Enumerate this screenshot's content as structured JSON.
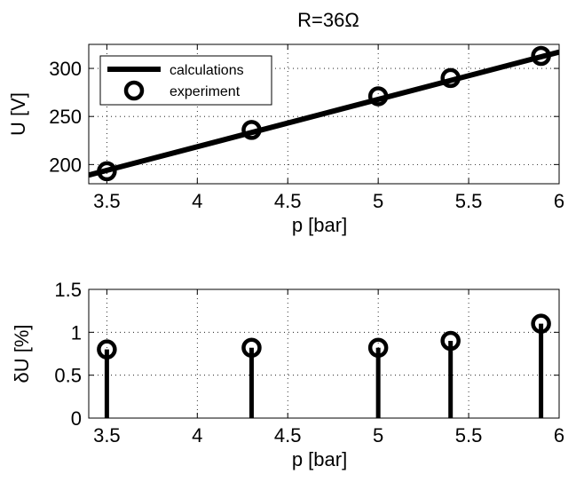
{
  "figure": {
    "title": "R=36Ω"
  },
  "chart_data": [
    {
      "type": "line",
      "title": "R=36Ω",
      "xlabel": "p [bar]",
      "ylabel": "U [V]",
      "xlim": [
        3.4,
        6.0
      ],
      "ylim": [
        180,
        325
      ],
      "xticks": [
        3.5,
        4,
        4.5,
        5,
        5.5,
        6
      ],
      "xtick_labels": [
        "3.5",
        "4",
        "4.5",
        "5",
        "5.5",
        "6"
      ],
      "yticks": [
        200,
        250,
        300
      ],
      "ytick_labels": [
        "200",
        "250",
        "300"
      ],
      "grid": true,
      "legend_position": "top-left",
      "series": [
        {
          "name": "calculations",
          "style": "solid line",
          "color": "#000000",
          "x": [
            3.4,
            6.0
          ],
          "y": [
            189,
            317
          ]
        },
        {
          "name": "experiment",
          "style": "open circle markers",
          "color": "#000000",
          "x": [
            3.5,
            4.3,
            5.0,
            5.4,
            5.9
          ],
          "y": [
            193,
            236,
            271,
            290,
            313
          ]
        }
      ]
    },
    {
      "type": "stem",
      "xlabel": "p [bar]",
      "ylabel": "δU [%]",
      "xlim": [
        3.4,
        6.0
      ],
      "ylim": [
        0,
        1.5
      ],
      "xticks": [
        3.5,
        4,
        4.5,
        5,
        5.5,
        6
      ],
      "xtick_labels": [
        "3.5",
        "4",
        "4.5",
        "5",
        "5.5",
        "6"
      ],
      "yticks": [
        0,
        0.5,
        1,
        1.5
      ],
      "ytick_labels": [
        "0",
        "0.5",
        "1",
        "1.5"
      ],
      "grid": true,
      "series": [
        {
          "style": "stems with open circle markers",
          "color": "#000000",
          "x": [
            3.5,
            4.3,
            5.0,
            5.4,
            5.9
          ],
          "y": [
            0.8,
            0.82,
            0.82,
            0.9,
            1.1
          ]
        }
      ]
    }
  ]
}
